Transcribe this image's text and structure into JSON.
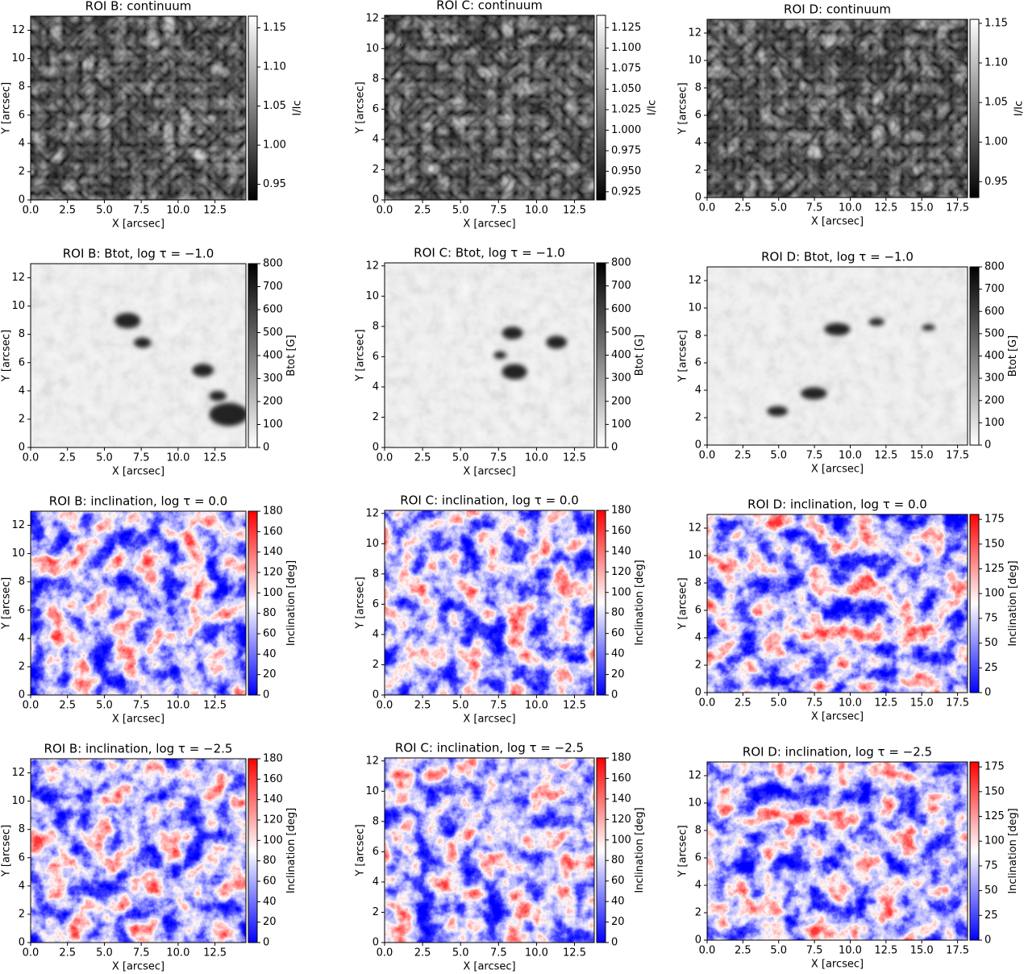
{
  "chart_data": [
    {
      "type": "heatmap",
      "title": "ROI B: continuum",
      "xlabel": "X [arcsec]",
      "ylabel": "Y [arcsec]",
      "colorbar_label": "I/Ic",
      "xlim": [
        0,
        14.6
      ],
      "ylim": [
        0,
        13
      ],
      "xticks": [
        {
          "value": 0,
          "label": "0.0"
        },
        2.5,
        {
          "value": 5,
          "label": "5.0"
        },
        7.5,
        {
          "value": 10,
          "label": "10.0"
        },
        12.5
      ],
      "yticks": [
        0,
        2,
        4,
        6,
        8,
        10,
        12
      ],
      "clim": [
        0.93,
        1.165
      ],
      "cticks": [
        0.95,
        {
          "value": 1,
          "label": "1.00"
        },
        1.05,
        {
          "value": 1.1,
          "label": "1.10"
        },
        1.15
      ],
      "colormap": [
        "#000000",
        "#ffffff"
      ]
    },
    {
      "type": "heatmap",
      "title": "ROI C: continuum",
      "xlabel": "X [arcsec]",
      "ylabel": "Y [arcsec]",
      "colorbar_label": "I/Ic",
      "xlim": [
        0,
        13.8
      ],
      "ylim": [
        0,
        12.2
      ],
      "xticks": [
        {
          "value": 0,
          "label": "0.0"
        },
        2.5,
        {
          "value": 5,
          "label": "5.0"
        },
        7.5,
        {
          "value": 10,
          "label": "10.0"
        },
        12.5
      ],
      "yticks": [
        0,
        2,
        4,
        6,
        8,
        10,
        12
      ],
      "clim": [
        0.915,
        1.14
      ],
      "cticks": [
        0.925,
        {
          "value": 0.95,
          "label": "0.950"
        },
        0.975,
        {
          "value": 1,
          "label": "1.000"
        },
        1.025,
        {
          "value": 1.05,
          "label": "1.050"
        },
        1.075,
        {
          "value": 1.1,
          "label": "1.100"
        },
        1.125
      ],
      "colormap": [
        "#000000",
        "#ffffff"
      ]
    },
    {
      "type": "heatmap",
      "title": "ROI D: continuum",
      "xlabel": "X [arcsec]",
      "ylabel": "Y [arcsec]",
      "colorbar_label": "I/Ic",
      "xlim": [
        0,
        18.2
      ],
      "ylim": [
        0,
        13
      ],
      "xticks": [
        {
          "value": 0,
          "label": "0.0"
        },
        2.5,
        {
          "value": 5,
          "label": "5.0"
        },
        7.5,
        {
          "value": 10,
          "label": "10.0"
        },
        12.5,
        {
          "value": 15,
          "label": "15.0"
        },
        17.5
      ],
      "yticks": [
        0,
        2,
        4,
        6,
        8,
        10,
        12
      ],
      "clim": [
        0.93,
        1.155
      ],
      "cticks": [
        0.95,
        {
          "value": 1,
          "label": "1.00"
        },
        1.05,
        {
          "value": 1.1,
          "label": "1.10"
        },
        1.15
      ],
      "colormap": [
        "#000000",
        "#ffffff"
      ]
    },
    {
      "type": "heatmap",
      "title": "ROI B: Btot, log τ = −1.0",
      "xlabel": "X [arcsec]",
      "ylabel": "Y [arcsec]",
      "colorbar_label": "Btot [G]",
      "xlim": [
        0,
        14.6
      ],
      "ylim": [
        0,
        13
      ],
      "xticks": [
        {
          "value": 0,
          "label": "0.0"
        },
        2.5,
        {
          "value": 5,
          "label": "5.0"
        },
        7.5,
        {
          "value": 10,
          "label": "10.0"
        },
        12.5
      ],
      "yticks": [
        0,
        2,
        4,
        6,
        8,
        10,
        12
      ],
      "clim": [
        0,
        800
      ],
      "cticks": [
        0,
        100,
        200,
        300,
        400,
        500,
        600,
        700,
        800
      ],
      "colormap": [
        "#ffffff",
        "#000000"
      ]
    },
    {
      "type": "heatmap",
      "title": "ROI C: Btot, log τ = −1.0",
      "xlabel": "X [arcsec]",
      "ylabel": "Y [arcsec]",
      "colorbar_label": "Btot [G]",
      "xlim": [
        0,
        13.8
      ],
      "ylim": [
        0,
        12.2
      ],
      "xticks": [
        {
          "value": 0,
          "label": "0.0"
        },
        2.5,
        {
          "value": 5,
          "label": "5.0"
        },
        7.5,
        {
          "value": 10,
          "label": "10.0"
        },
        12.5
      ],
      "yticks": [
        0,
        2,
        4,
        6,
        8,
        10,
        12
      ],
      "clim": [
        0,
        800
      ],
      "cticks": [
        0,
        100,
        200,
        300,
        400,
        500,
        600,
        700,
        800
      ],
      "colormap": [
        "#ffffff",
        "#000000"
      ]
    },
    {
      "type": "heatmap",
      "title": "ROI D: Btot, log τ = −1.0",
      "xlabel": "X [arcsec]",
      "ylabel": "Y [arcsec]",
      "colorbar_label": "Btot [G]",
      "xlim": [
        0,
        18.2
      ],
      "ylim": [
        0,
        13
      ],
      "xticks": [
        {
          "value": 0,
          "label": "0.0"
        },
        2.5,
        {
          "value": 5,
          "label": "5.0"
        },
        7.5,
        {
          "value": 10,
          "label": "10.0"
        },
        12.5,
        {
          "value": 15,
          "label": "15.0"
        },
        17.5
      ],
      "yticks": [
        0,
        2,
        4,
        6,
        8,
        10,
        12
      ],
      "clim": [
        0,
        800
      ],
      "cticks": [
        0,
        100,
        200,
        300,
        400,
        500,
        600,
        700,
        800
      ],
      "colormap": [
        "#ffffff",
        "#000000"
      ]
    },
    {
      "type": "heatmap",
      "title": "ROI B: inclination, log τ = 0.0",
      "xlabel": "X [arcsec]",
      "ylabel": "Y [arcsec]",
      "colorbar_label": "Inclination [deg]",
      "xlim": [
        0,
        14.6
      ],
      "ylim": [
        0,
        13
      ],
      "xticks": [
        {
          "value": 0,
          "label": "0.0"
        },
        2.5,
        {
          "value": 5,
          "label": "5.0"
        },
        7.5,
        {
          "value": 10,
          "label": "10.0"
        },
        12.5
      ],
      "yticks": [
        0,
        2,
        4,
        6,
        8,
        10,
        12
      ],
      "clim": [
        0,
        180
      ],
      "cticks": [
        0,
        20,
        40,
        60,
        80,
        100,
        120,
        140,
        160,
        180
      ],
      "colormap": [
        "#0000ff",
        "#ffffff",
        "#ff0000"
      ]
    },
    {
      "type": "heatmap",
      "title": "ROI C: inclination, log τ = 0.0",
      "xlabel": "X [arcsec]",
      "ylabel": "Y [arcsec]",
      "colorbar_label": "Inclination [deg]",
      "xlim": [
        0,
        13.8
      ],
      "ylim": [
        0,
        12.2
      ],
      "xticks": [
        {
          "value": 0,
          "label": "0.0"
        },
        2.5,
        {
          "value": 5,
          "label": "5.0"
        },
        7.5,
        {
          "value": 10,
          "label": "10.0"
        },
        12.5
      ],
      "yticks": [
        0,
        2,
        4,
        6,
        8,
        10,
        12
      ],
      "clim": [
        0,
        180
      ],
      "cticks": [
        0,
        20,
        40,
        60,
        80,
        100,
        120,
        140,
        160,
        180
      ],
      "colormap": [
        "#0000ff",
        "#ffffff",
        "#ff0000"
      ]
    },
    {
      "type": "heatmap",
      "title": "ROI D: inclination, log τ = 0.0",
      "xlabel": "X [arcsec]",
      "ylabel": "Y [arcsec]",
      "colorbar_label": "Inclination [deg]",
      "xlim": [
        0,
        18.2
      ],
      "ylim": [
        0,
        13
      ],
      "xticks": [
        {
          "value": 0,
          "label": "0.0"
        },
        2.5,
        {
          "value": 5,
          "label": "5.0"
        },
        7.5,
        {
          "value": 10,
          "label": "10.0"
        },
        12.5,
        {
          "value": 15,
          "label": "15.0"
        },
        17.5
      ],
      "yticks": [
        0,
        2,
        4,
        6,
        8,
        10,
        12
      ],
      "clim": [
        0,
        180
      ],
      "cticks": [
        0,
        25,
        50,
        75,
        100,
        125,
        150,
        175
      ],
      "colormap": [
        "#0000ff",
        "#ffffff",
        "#ff0000"
      ]
    },
    {
      "type": "heatmap",
      "title": "ROI B: inclination, log τ = −2.5",
      "xlabel": "X [arcsec]",
      "ylabel": "Y [arcsec]",
      "colorbar_label": "Inclination [deg]",
      "xlim": [
        0,
        14.6
      ],
      "ylim": [
        0,
        13
      ],
      "xticks": [
        {
          "value": 0,
          "label": "0.0"
        },
        2.5,
        {
          "value": 5,
          "label": "5.0"
        },
        7.5,
        {
          "value": 10,
          "label": "10.0"
        },
        12.5
      ],
      "yticks": [
        0,
        2,
        4,
        6,
        8,
        10,
        12
      ],
      "clim": [
        0,
        180
      ],
      "cticks": [
        0,
        20,
        40,
        60,
        80,
        100,
        120,
        140,
        160,
        180
      ],
      "colormap": [
        "#0000ff",
        "#ffffff",
        "#ff0000"
      ]
    },
    {
      "type": "heatmap",
      "title": "ROI C: inclination, log τ = −2.5",
      "xlabel": "X [arcsec]",
      "ylabel": "Y [arcsec]",
      "colorbar_label": "Inclination [deg]",
      "xlim": [
        0,
        13.8
      ],
      "ylim": [
        0,
        12.2
      ],
      "xticks": [
        {
          "value": 0,
          "label": "0.0"
        },
        2.5,
        {
          "value": 5,
          "label": "5.0"
        },
        7.5,
        {
          "value": 10,
          "label": "10.0"
        },
        12.5
      ],
      "yticks": [
        0,
        2,
        4,
        6,
        8,
        10,
        12
      ],
      "clim": [
        0,
        180
      ],
      "cticks": [
        0,
        20,
        40,
        60,
        80,
        100,
        120,
        140,
        160,
        180
      ],
      "colormap": [
        "#0000ff",
        "#ffffff",
        "#ff0000"
      ]
    },
    {
      "type": "heatmap",
      "title": "ROI D: inclination, log τ = −2.5",
      "xlabel": "X [arcsec]",
      "ylabel": "Y [arcsec]",
      "colorbar_label": "Inclination [deg]",
      "xlim": [
        0,
        18.2
      ],
      "ylim": [
        0,
        13
      ],
      "xticks": [
        {
          "value": 0,
          "label": "0.0"
        },
        2.5,
        {
          "value": 5,
          "label": "5.0"
        },
        7.5,
        {
          "value": 10,
          "label": "10.0"
        },
        12.5,
        {
          "value": 15,
          "label": "15.0"
        },
        17.5
      ],
      "yticks": [
        0,
        2,
        4,
        6,
        8,
        10,
        12
      ],
      "clim": [
        0,
        180
      ],
      "cticks": [
        0,
        25,
        50,
        75,
        100,
        125,
        150,
        175
      ],
      "colormap": [
        "#0000ff",
        "#ffffff",
        "#ff0000"
      ]
    }
  ]
}
